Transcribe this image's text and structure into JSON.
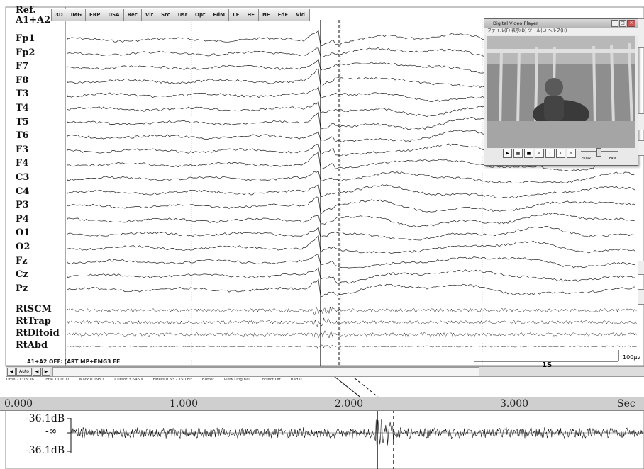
{
  "ref_label": [
    "Ref.",
    "A1+A2"
  ],
  "channels": [
    "Fp1",
    "Fp2",
    "F7",
    "F8",
    "T3",
    "T4",
    "T5",
    "T6",
    "F3",
    "F4",
    "C3",
    "C4",
    "P3",
    "P4",
    "O1",
    "O2",
    "Fz",
    "Cz",
    "Pz"
  ],
  "emg_channels": [
    "RtSCM",
    "RtTrap",
    "RtDltoid",
    "RtAbd"
  ],
  "toolbar": [
    "3D",
    "IMG",
    "ERP",
    "DSA",
    "Rec",
    "Vir",
    "Src",
    "Usr",
    "Opt",
    "EdM",
    "LF",
    "HF",
    "NF",
    "EdF",
    "Vid"
  ],
  "montage_label": "A1+A2 OFF: (ART MP+EMG3 EE",
  "auto_button": "Auto",
  "scale_time": "1S",
  "scale_amp": "100µv",
  "status": {
    "time": "Time 21:03:36",
    "total": "Total 1:00:07",
    "mark": "Mark 0.195 s",
    "cursor": "Cursor 3.646 s",
    "filters": "Filters 0.53 - 150 Hz",
    "buffer": "Buffer",
    "view": "View Original",
    "correct": "Correct Off",
    "bad": "Bad 0"
  },
  "video_player": {
    "title": "Digital Video Player",
    "menu": "ファイル(F)  表示(D)  ツール(L)  ヘルプ(H)",
    "slow": "Slow",
    "fast": "Fast"
  },
  "timeline": {
    "ticks": [
      "0.000",
      "1.000",
      "2.000",
      "3.000"
    ],
    "unit": "Sec",
    "db_top": "-36.1dB",
    "db_mid": "-∞",
    "db_bottom": "-36.1dB"
  }
}
